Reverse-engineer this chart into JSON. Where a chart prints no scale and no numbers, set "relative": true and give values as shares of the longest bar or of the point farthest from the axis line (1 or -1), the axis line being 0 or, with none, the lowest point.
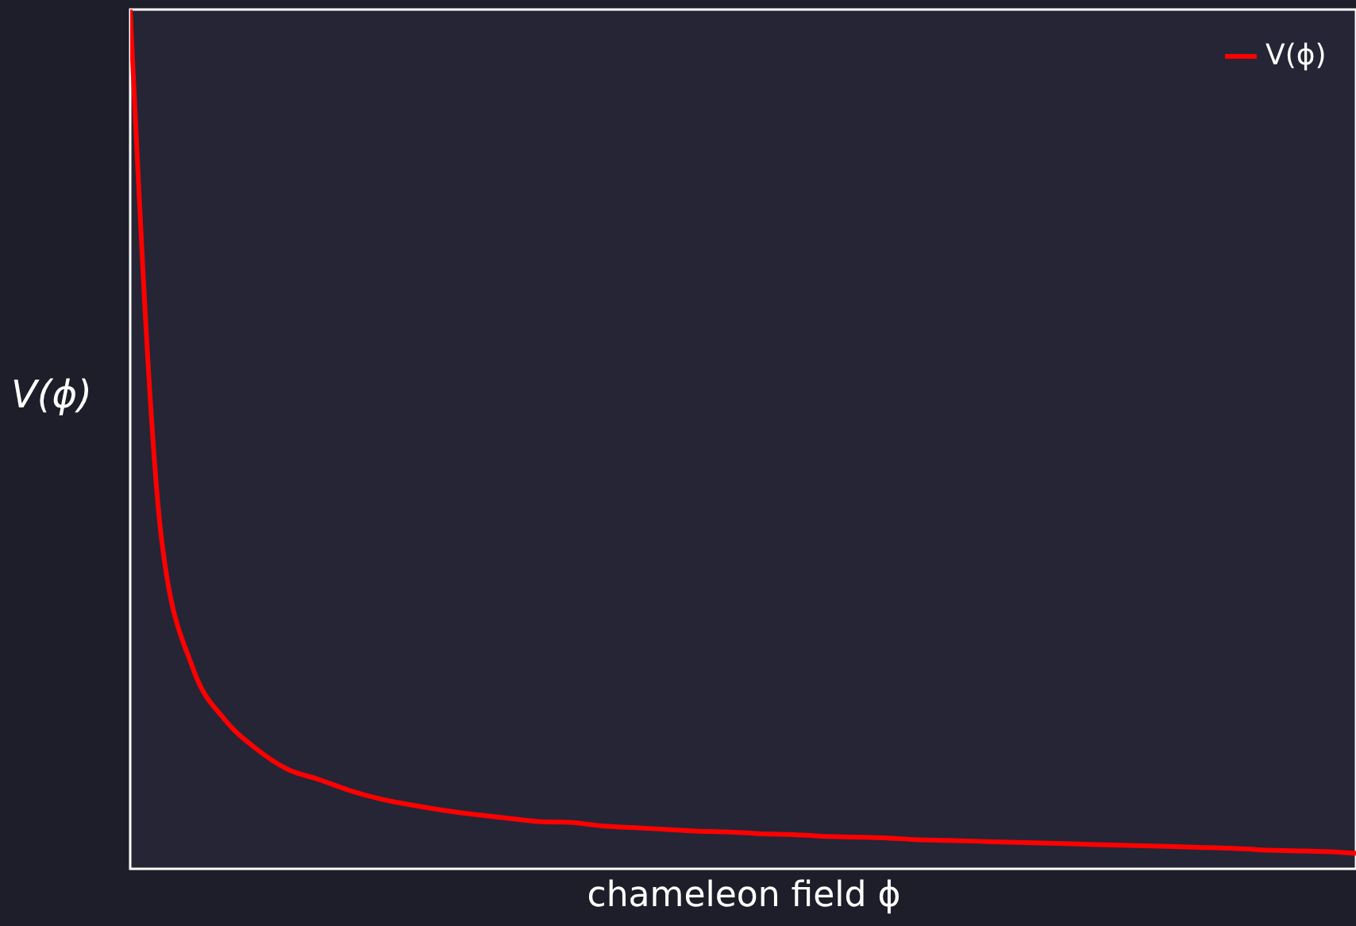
{
  "chart_data": {
    "type": "line",
    "xlabel": "chameleon field ϕ",
    "ylabel": "V(ϕ)",
    "relative": true,
    "legend": "top right",
    "categories": [
      null,
      null,
      null,
      null,
      null,
      null,
      null,
      null,
      null,
      null,
      null,
      null,
      null,
      null,
      null,
      null,
      null,
      null,
      null,
      null,
      null,
      null,
      null,
      null,
      null,
      null,
      null,
      null,
      null,
      null,
      null,
      null,
      null,
      null,
      null,
      null,
      null,
      null,
      null,
      null
    ],
    "series": [
      {
        "name": "V(ϕ)",
        "color": "#ff0000",
        "values": [
          1.0,
          0.383,
          0.233,
          0.174,
          0.14,
          0.116,
          0.104,
          0.091,
          0.081,
          0.074,
          0.068,
          0.063,
          0.059,
          0.055,
          0.054,
          0.05,
          0.048,
          0.046,
          0.044,
          0.043,
          0.041,
          0.04,
          0.038,
          0.037,
          0.036,
          0.034,
          0.033,
          0.032,
          0.031,
          0.03,
          0.029,
          0.028,
          0.027,
          0.026,
          0.025,
          0.024,
          0.022,
          0.021,
          0.02,
          0.018
        ]
      }
    ]
  }
}
